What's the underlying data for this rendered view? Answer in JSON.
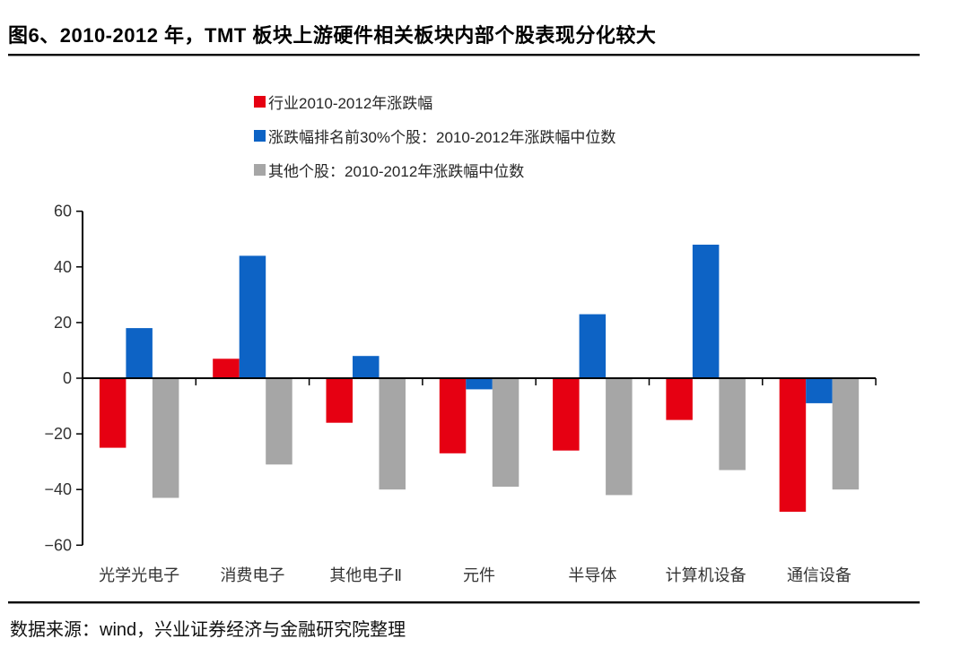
{
  "title": "图6、2010-2012 年，TMT 板块上游硬件相关板块内部个股表现分化较大",
  "source_note": "数据来源：wind，兴业证券经济与金融研究院整理",
  "colors": {
    "industry_red": "#e60012",
    "top30_blue": "#0d63c5",
    "others_gray": "#a6a6a6",
    "axis_black": "#000000",
    "tick_text": "#333333"
  },
  "legend": [
    {
      "label": "行业2010-2012年涨跌幅",
      "color": "#e60012"
    },
    {
      "label": "涨跌幅排名前30%个股：2010-2012年涨跌幅中位数",
      "color": "#0d63c5"
    },
    {
      "label": "其他个股：2010-2012年涨跌幅中位数",
      "color": "#a6a6a6"
    }
  ],
  "chart_data": {
    "type": "bar",
    "title": "图6、2010-2012 年，TMT 板块上游硬件相关板块内部个股表现分化较大",
    "categories": [
      "光学光电子",
      "消费电子",
      "其他电子Ⅱ",
      "元件",
      "半导体",
      "计算机设备",
      "通信设备"
    ],
    "series": [
      {
        "name": "行业2010-2012年涨跌幅",
        "color": "#e60012",
        "values": [
          -25,
          7,
          -16,
          -27,
          -26,
          -15,
          -48
        ]
      },
      {
        "name": "涨跌幅排名前30%个股：2010-2012年涨跌幅中位数",
        "color": "#0d63c5",
        "values": [
          18,
          44,
          8,
          -4,
          23,
          48,
          -9
        ]
      },
      {
        "name": "其他个股：2010-2012年涨跌幅中位数",
        "color": "#a6a6a6",
        "values": [
          -43,
          -31,
          -40,
          -39,
          -42,
          -33,
          -40
        ]
      }
    ],
    "xlabel": "",
    "ylabel": "",
    "ylim": [
      -60,
      60
    ],
    "ytick_interval": 20,
    "ytick_labels": [
      "60",
      "40",
      "20",
      "0",
      "−20",
      "−40",
      "−60"
    ],
    "grid": false,
    "legend_position": "top"
  }
}
